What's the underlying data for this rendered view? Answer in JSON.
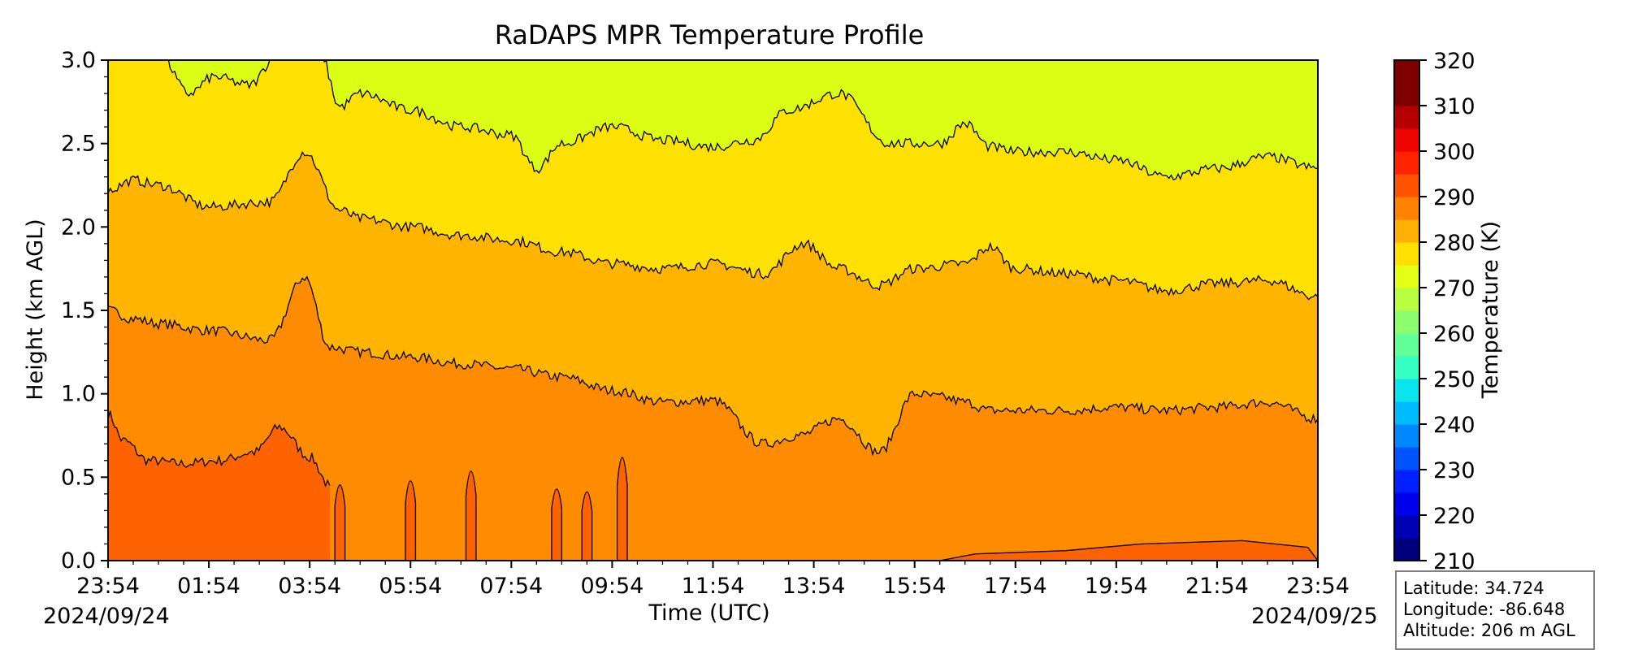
{
  "chart_data": {
    "type": "heatmap",
    "title": "RaDAPS MPR Temperature Profile",
    "xlabel": "Time (UTC)",
    "ylabel": "Height (km AGL)",
    "xlim_hours": [
      0,
      24
    ],
    "ylim": [
      0,
      3.0
    ],
    "x_tick_labels": [
      "23:54",
      "01:54",
      "03:54",
      "05:54",
      "07:54",
      "09:54",
      "11:54",
      "13:54",
      "15:54",
      "17:54",
      "19:54",
      "21:54",
      "23:54"
    ],
    "y_tick_labels": [
      "0.0",
      "0.5",
      "1.0",
      "1.5",
      "2.0",
      "2.5",
      "3.0"
    ],
    "y_ticks": [
      0,
      0.5,
      1.0,
      1.5,
      2.0,
      2.5,
      3.0
    ],
    "start_date": "2024/09/24",
    "end_date": "2024/09/25",
    "colorbar": {
      "label": "Temperature (K)",
      "min": 210,
      "max": 320,
      "step": 5,
      "tick_labels": [
        "210",
        "220",
        "230",
        "240",
        "250",
        "260",
        "270",
        "280",
        "290",
        "300",
        "310",
        "320"
      ],
      "colors": [
        "#00007f",
        "#0000b5",
        "#0000ec",
        "#0020ff",
        "#0054ff",
        "#0088ff",
        "#00bcff",
        "#0ae5ed",
        "#35ffc2",
        "#60ff97",
        "#8bff6d",
        "#b7ff40",
        "#e2ff15",
        "#ffe000",
        "#ffb000",
        "#ff8200",
        "#ff5300",
        "#ff2400",
        "#ed0400",
        "#b50000",
        "#7f0000",
        "#7f0000"
      ]
    },
    "contour_levels_K": [
      280,
      285,
      290,
      295
    ],
    "band_colors": {
      "below_295": "#ff6200",
      "295_290": "#ff8c00",
      "290_285": "#ffb400",
      "285_280": "#ffe100",
      "above_280": "#daff14"
    },
    "contours": [
      {
        "level": 295,
        "x": [
          0,
          0.3,
          0.8,
          1.5,
          2.2,
          2.9,
          3.4,
          4.0,
          4.4
        ],
        "y": [
          0.88,
          0.72,
          0.6,
          0.58,
          0.6,
          0.65,
          0.8,
          0.62,
          0.45
        ]
      },
      {
        "level": 290,
        "x": [
          0,
          0.5,
          1.0,
          2.0,
          3.2,
          3.9,
          4.4,
          5.0,
          6.0,
          7.0,
          8.0,
          9.0,
          10.0,
          11.0,
          12.0,
          13.0,
          13.7,
          14.5,
          15.3,
          16.0,
          16.5,
          17.0,
          17.5,
          18.0,
          19.0,
          20.0,
          21.0,
          22.0,
          23.0,
          24.0
        ],
        "y": [
          1.5,
          1.45,
          1.42,
          1.38,
          1.32,
          1.7,
          1.28,
          1.25,
          1.22,
          1.18,
          1.15,
          1.1,
          1.02,
          0.95,
          0.96,
          0.7,
          0.75,
          0.85,
          0.65,
          1.0,
          0.98,
          0.95,
          0.9,
          0.9,
          0.9,
          0.92,
          0.9,
          0.92,
          0.95,
          0.85
        ]
      },
      {
        "level": 285,
        "x": [
          0,
          0.5,
          1.0,
          2.0,
          3.2,
          3.9,
          4.6,
          5.0,
          6.0,
          7.0,
          8.0,
          9.0,
          10.0,
          11.0,
          12.0,
          13.0,
          13.8,
          14.5,
          15.3,
          16.0,
          17.0,
          17.5,
          18.0,
          19.0,
          20.0,
          21.0,
          22.0,
          23.0,
          24.0
        ],
        "y": [
          2.22,
          2.28,
          2.25,
          2.12,
          2.15,
          2.45,
          2.1,
          2.05,
          2.0,
          1.95,
          1.92,
          1.85,
          1.78,
          1.75,
          1.78,
          1.72,
          1.9,
          1.75,
          1.65,
          1.75,
          1.78,
          1.88,
          1.75,
          1.72,
          1.68,
          1.62,
          1.66,
          1.68,
          1.58
        ]
      },
      {
        "level": 280,
        "x": [
          0,
          0.5,
          1.0,
          1.6,
          2.1,
          2.8,
          3.4,
          4.2,
          4.6,
          5.0,
          6.0,
          7.0,
          8.0,
          8.5,
          9.0,
          10.0,
          11.0,
          12.0,
          12.8,
          13.5,
          14.5,
          15.5,
          16.5,
          17.0,
          17.5,
          18.0,
          19.0,
          20.0,
          21.0,
          22.0,
          23.0,
          24.0
        ],
        "y": [
          3.05,
          3.05,
          3.05,
          2.8,
          2.9,
          2.85,
          3.05,
          3.05,
          2.72,
          2.8,
          2.7,
          2.6,
          2.55,
          2.35,
          2.5,
          2.6,
          2.52,
          2.48,
          2.52,
          2.7,
          2.8,
          2.5,
          2.5,
          2.62,
          2.48,
          2.45,
          2.45,
          2.4,
          2.3,
          2.35,
          2.42,
          2.35
        ]
      }
    ],
    "bottom_spikes": [
      {
        "x": 4.6,
        "top": 0.55
      },
      {
        "x": 6.0,
        "top": 0.58
      },
      {
        "x": 7.2,
        "top": 0.65
      },
      {
        "x": 8.9,
        "top": 0.52
      },
      {
        "x": 9.5,
        "top": 0.5
      },
      {
        "x": 10.2,
        "top": 0.75
      }
    ]
  },
  "info": {
    "latitude": "Latitude: 34.724",
    "longitude": "Longitude: -86.648",
    "altitude": "Altitude: 206 m AGL"
  }
}
